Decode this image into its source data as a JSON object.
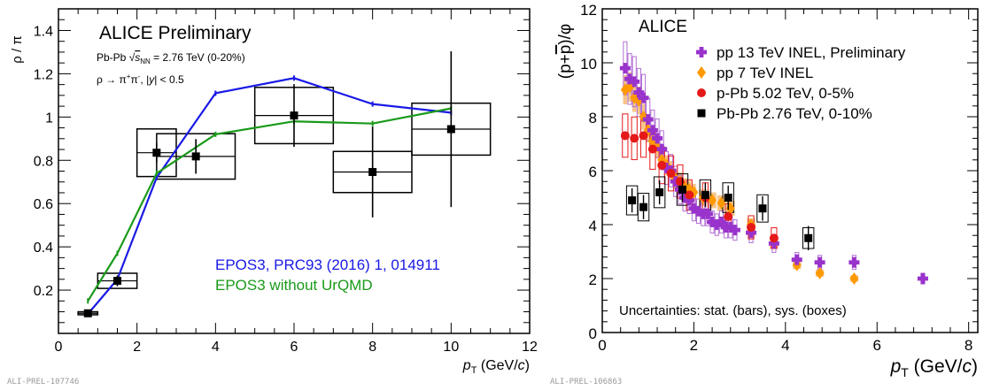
{
  "chart_data": [
    {
      "type": "scatter",
      "title": "ALICE Preliminary",
      "subtitle_lines": [
        "Pb-Pb √sNN = 2.76 TeV (0-20%)",
        "ρ → π+π-, |y| < 0.5"
      ],
      "subtitle1": {
        "pre": "Pb-Pb ",
        "s": "s",
        "sub": "NN",
        "post": " = 2.76 TeV (0-20%)"
      },
      "subtitle2": {
        "pre": "ρ → π",
        "sup1": "+",
        "mid": "π",
        "sup2": "-",
        "post": ", |",
        "y": "y",
        "tail": "| < 0.5"
      },
      "ylabel": "ρ / π",
      "xlabel": {
        "p": "p",
        "sub": "T",
        "unit_pre": " (GeV/",
        "unit_c": "c",
        "unit_post": ")"
      },
      "xlim": [
        0,
        12
      ],
      "ylim": [
        0,
        1.5
      ],
      "xticks": [
        0,
        2,
        4,
        6,
        8,
        10,
        12
      ],
      "yticks": [
        0.2,
        0.4,
        0.6,
        0.8,
        1,
        1.2,
        1.4
      ],
      "grid": false,
      "legend_position": "bottom-center",
      "preliminary_tag": "ALI-PREL-107746",
      "data_points": {
        "x": [
          0.75,
          1.5,
          2.5,
          3.5,
          6.0,
          8.0,
          10.0
        ],
        "y": [
          0.093,
          0.243,
          0.835,
          0.818,
          1.007,
          0.746,
          0.944
        ],
        "stat_err": [
          0.008,
          0.025,
          0.045,
          0.08,
          0.145,
          0.21,
          0.36
        ],
        "sys_xw": [
          0.25,
          0.5,
          0.5,
          1.0,
          1.0,
          1.0,
          1.0
        ],
        "sys_yerr": [
          0.007,
          0.035,
          0.11,
          0.105,
          0.13,
          0.095,
          0.12
        ],
        "color": "#000000"
      },
      "series": [
        {
          "name": "EPOS3, PRC93 (2016) 1, 014911",
          "color": "#1a1ae6",
          "x": [
            0.75,
            1.5,
            2.5,
            4.0,
            6.0,
            8.0,
            10.0
          ],
          "y": [
            0.09,
            0.25,
            0.72,
            1.11,
            1.18,
            1.06,
            1.02
          ]
        },
        {
          "name": "EPOS3 without UrQMD",
          "color": "#1a9a1a",
          "x": [
            0.75,
            1.5,
            2.5,
            4.0,
            6.0,
            8.0,
            10.0
          ],
          "y": [
            0.15,
            0.37,
            0.74,
            0.92,
            0.98,
            0.97,
            1.04
          ]
        }
      ]
    },
    {
      "type": "scatter",
      "title": "ALICE",
      "ylabel": "(p+p̄)/φ",
      "ylabel_parts": {
        "pre": "(p+",
        "bar": "p",
        "post": ")/φ"
      },
      "xlabel": {
        "p": "p",
        "sub": "T",
        "unit_pre": " (GeV/",
        "unit_c": "c",
        "unit_post": ")"
      },
      "xlim": [
        0,
        8.2
      ],
      "ylim": [
        0,
        12
      ],
      "xticks": [
        0,
        2,
        4,
        6,
        8
      ],
      "yticks": [
        0,
        2,
        4,
        6,
        8,
        10,
        12
      ],
      "grid": false,
      "legend_position": "top-right",
      "annotation": "Uncertainties: stat. (bars), sys. (boxes)",
      "preliminary_tag": "ALI-PREL-106863",
      "series": [
        {
          "name": "pp 13 TeV INEL, Preliminary",
          "color": "#9933cc",
          "marker": "cross",
          "x": [
            0.5,
            0.6,
            0.7,
            0.8,
            0.9,
            1.0,
            1.1,
            1.2,
            1.3,
            1.4,
            1.5,
            1.6,
            1.7,
            1.8,
            1.9,
            2.0,
            2.1,
            2.2,
            2.3,
            2.4,
            2.5,
            2.6,
            2.7,
            2.8,
            2.9,
            3.25,
            3.75,
            4.25,
            4.75,
            5.5,
            7.0
          ],
          "y": [
            9.8,
            9.4,
            9.3,
            8.9,
            8.7,
            7.9,
            7.5,
            7.2,
            6.8,
            6.1,
            6.0,
            5.6,
            5.3,
            5.0,
            4.9,
            4.6,
            4.5,
            4.4,
            4.4,
            4.1,
            4.0,
            4.1,
            3.9,
            3.9,
            3.8,
            3.7,
            3.3,
            2.7,
            2.6,
            2.6,
            2.0
          ]
        },
        {
          "name": "pp 7 TeV INEL",
          "color": "#ff9900",
          "marker": "diamond",
          "x": [
            0.5,
            0.6,
            0.7,
            0.8,
            0.9,
            1.0,
            1.1,
            1.2,
            1.3,
            1.4,
            1.5,
            1.6,
            1.7,
            1.8,
            1.9,
            2.0,
            2.2,
            2.4,
            2.6,
            2.8,
            3.25,
            3.75,
            4.25,
            4.75,
            5.5
          ],
          "y": [
            9.0,
            9.1,
            8.7,
            8.6,
            8.0,
            7.5,
            7.1,
            6.9,
            6.4,
            6.2,
            6.0,
            5.7,
            5.6,
            5.4,
            5.3,
            5.2,
            5.0,
            4.9,
            4.8,
            4.6,
            4.0,
            3.3,
            2.5,
            2.2,
            2.0
          ]
        },
        {
          "name": "p-Pb 5.02 TeV, 0-5%",
          "color": "#e61919",
          "marker": "circle",
          "x": [
            0.5,
            0.7,
            0.9,
            1.1,
            1.3,
            1.5,
            1.7,
            1.9,
            2.25,
            2.75,
            3.25,
            3.75
          ],
          "y": [
            7.3,
            7.2,
            7.3,
            6.8,
            6.2,
            5.9,
            5.6,
            5.1,
            5.0,
            4.3,
            3.9,
            3.5
          ]
        },
        {
          "name": "Pb-Pb 2.76 TeV, 0-10%",
          "color": "#000000",
          "marker": "square",
          "x": [
            0.65,
            0.9,
            1.25,
            1.75,
            2.25,
            2.75,
            3.5,
            4.5
          ],
          "y": [
            4.9,
            4.65,
            5.2,
            5.3,
            5.1,
            5.0,
            4.6,
            3.5
          ]
        }
      ]
    }
  ]
}
